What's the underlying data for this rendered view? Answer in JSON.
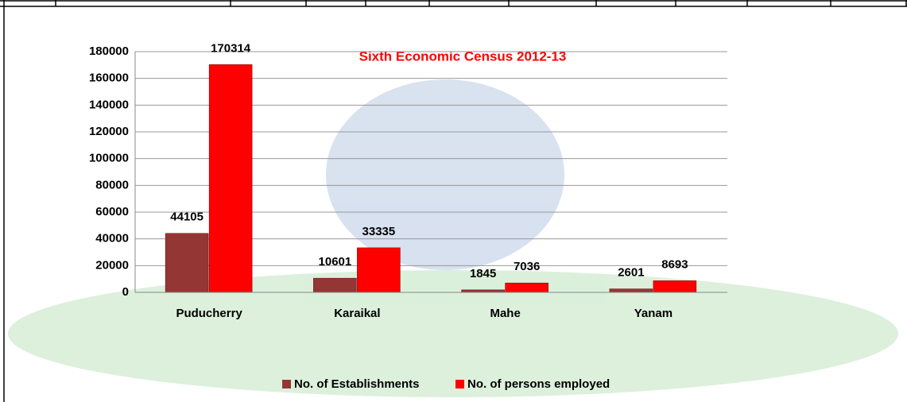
{
  "chart_data": {
    "type": "bar",
    "title": "Sixth Economic Census 2012-13",
    "categories": [
      "Puducherry",
      "Karaikal",
      "Mahe",
      "Yanam"
    ],
    "series": [
      {
        "name": "No. of Establishments",
        "color": "#943634",
        "values": [
          44105,
          10601,
          1845,
          2601
        ]
      },
      {
        "name": "No. of persons employed",
        "color": "#ff0000",
        "values": [
          170314,
          33335,
          7036,
          8693
        ]
      }
    ],
    "ylim": [
      0,
      180000
    ],
    "yticks": [
      0,
      20000,
      40000,
      60000,
      80000,
      100000,
      120000,
      140000,
      160000,
      180000
    ],
    "grid": true
  }
}
